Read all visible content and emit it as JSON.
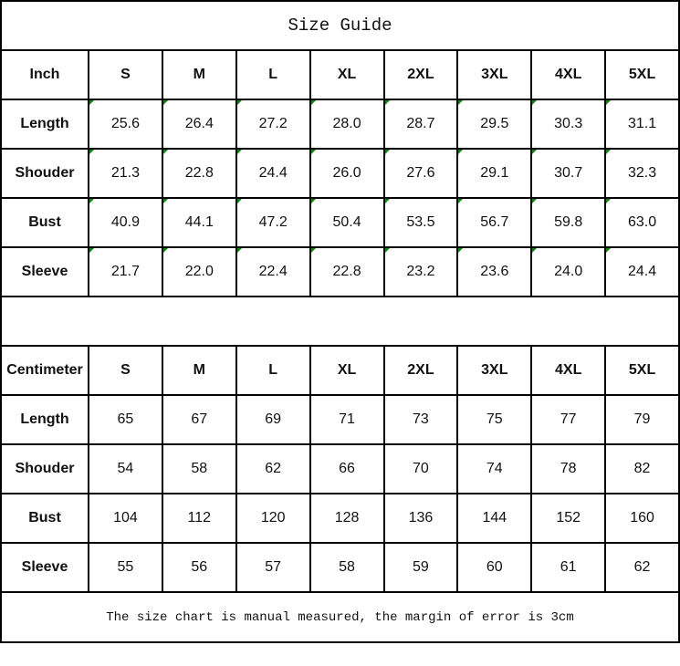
{
  "title": "Size Guide",
  "sizes": [
    "S",
    "M",
    "L",
    "XL",
    "2XL",
    "3XL",
    "4XL",
    "5XL"
  ],
  "inch": {
    "label": "Inch",
    "rows": [
      {
        "label": "Length",
        "values": [
          "25.6",
          "26.4",
          "27.2",
          "28.0",
          "28.7",
          "29.5",
          "30.3",
          "31.1"
        ]
      },
      {
        "label": "Shouder",
        "values": [
          "21.3",
          "22.8",
          "24.4",
          "26.0",
          "27.6",
          "29.1",
          "30.7",
          "32.3"
        ]
      },
      {
        "label": "Bust",
        "values": [
          "40.9",
          "44.1",
          "47.2",
          "50.4",
          "53.5",
          "56.7",
          "59.8",
          "63.0"
        ]
      },
      {
        "label": "Sleeve",
        "values": [
          "21.7",
          "22.0",
          "22.4",
          "22.8",
          "23.2",
          "23.6",
          "24.0",
          "24.4"
        ]
      }
    ]
  },
  "cm": {
    "label": "Centimeter",
    "rows": [
      {
        "label": "Length",
        "values": [
          "65",
          "67",
          "69",
          "71",
          "73",
          "75",
          "77",
          "79"
        ]
      },
      {
        "label": "Shouder",
        "values": [
          "54",
          "58",
          "62",
          "66",
          "70",
          "74",
          "78",
          "82"
        ]
      },
      {
        "label": "Bust",
        "values": [
          "104",
          "112",
          "120",
          "128",
          "136",
          "144",
          "152",
          "160"
        ]
      },
      {
        "label": "Sleeve",
        "values": [
          "55",
          "56",
          "57",
          "58",
          "59",
          "60",
          "61",
          "62"
        ]
      }
    ]
  },
  "note": "The size chart is manual measured, the margin of error is 3cm",
  "colors": {
    "border": "#000000",
    "corner_marker": "#0a8a0a"
  }
}
